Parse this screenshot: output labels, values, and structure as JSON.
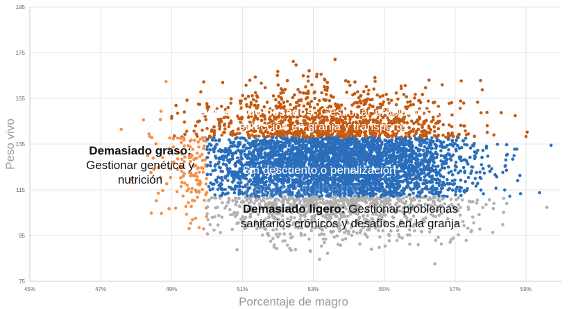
{
  "chart_data": {
    "type": "scatter",
    "title": "",
    "xlabel": "Porcentaje de magro",
    "ylabel": "Peso vivo",
    "xlim": [
      45,
      60
    ],
    "ylim": [
      75,
      195
    ],
    "x_ticks": [
      "45%",
      "47%",
      "49%",
      "51%",
      "53%",
      "55%",
      "57%",
      "59%"
    ],
    "x_tick_values": [
      45,
      47,
      49,
      51,
      53,
      55,
      57,
      59
    ],
    "y_ticks": [
      "195",
      "175",
      "155",
      "135",
      "115",
      "95",
      "75"
    ],
    "y_tick_values": [
      195,
      175,
      155,
      135,
      115,
      95,
      75
    ],
    "grid": true,
    "legend": "none",
    "regions": [
      {
        "key": "heavy",
        "color": "#c55a11",
        "rule": "Peso vivo > 138 y magro >= 49%"
      },
      {
        "key": "fat",
        "color": "#f4914a",
        "rule": "magro < 50%"
      },
      {
        "key": "ok",
        "color": "#2a6ebb",
        "rule": "magro >= 50% y 112 <= Peso vivo <= 138"
      },
      {
        "key": "light",
        "color": "#b0b0b0",
        "rule": "magro >= 50% y Peso vivo < 112"
      }
    ],
    "annotations": {
      "heavy": {
        "bold": "Demasiado pesados:",
        "text": "Gestionar problemas de selección en granja y transporte"
      },
      "fat": {
        "bold": "Demasiado graso:",
        "text": "Gestionar genética y nutrición"
      },
      "ok": {
        "text": "Sin descuento o penalización"
      },
      "light": {
        "bold": "Demasiado ligero:",
        "text": "Gestionar problemas sanitarios crónicos y desafíos en la granja"
      }
    },
    "watermark": "Lance Mulberry"
  }
}
